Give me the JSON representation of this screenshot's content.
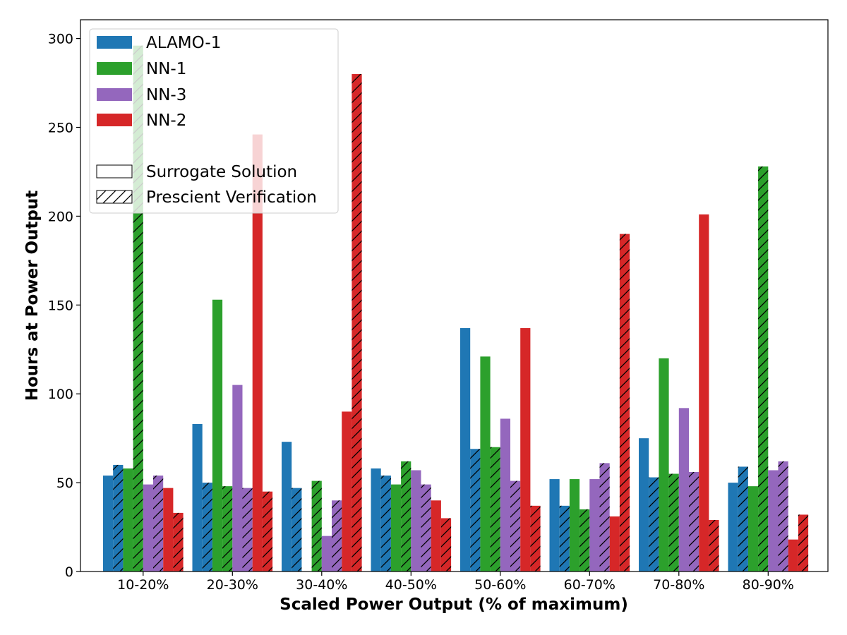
{
  "chart_data": {
    "type": "bar",
    "xlabel": "Scaled Power Output (% of maximum)",
    "ylabel": "Hours at Power Output",
    "categories": [
      "10-20%",
      "20-30%",
      "30-40%",
      "40-50%",
      "50-60%",
      "60-70%",
      "70-80%",
      "80-90%"
    ],
    "ylim": [
      0,
      310
    ],
    "yticks": [
      0,
      50,
      100,
      150,
      200,
      250,
      300
    ],
    "grid": false,
    "legend_position": "upper-left",
    "series": [
      {
        "name": "ALAMO-1",
        "color": "#1f77b4",
        "surrogate": [
          54,
          83,
          73,
          58,
          137,
          52,
          75,
          50
        ],
        "prescient": [
          60,
          50,
          47,
          54,
          69,
          37,
          53,
          59
        ]
      },
      {
        "name": "NN-1",
        "color": "#2ca02c",
        "surrogate": [
          58,
          153,
          0,
          49,
          121,
          52,
          120,
          48
        ],
        "prescient": [
          296,
          48,
          51,
          62,
          70,
          35,
          55,
          228
        ]
      },
      {
        "name": "NN-3",
        "color": "#9467bd",
        "surrogate": [
          49,
          105,
          20,
          57,
          86,
          52,
          92,
          57
        ],
        "prescient": [
          54,
          47,
          40,
          49,
          51,
          61,
          56,
          62
        ]
      },
      {
        "name": "NN-2",
        "color": "#d62728",
        "surrogate": [
          47,
          246,
          90,
          40,
          137,
          31,
          201,
          18
        ],
        "prescient": [
          33,
          45,
          280,
          30,
          37,
          190,
          29,
          32
        ]
      }
    ],
    "style_legend": [
      {
        "label": "Surrogate Solution",
        "hatch": false
      },
      {
        "label": "Prescient Verification",
        "hatch": true
      }
    ]
  }
}
